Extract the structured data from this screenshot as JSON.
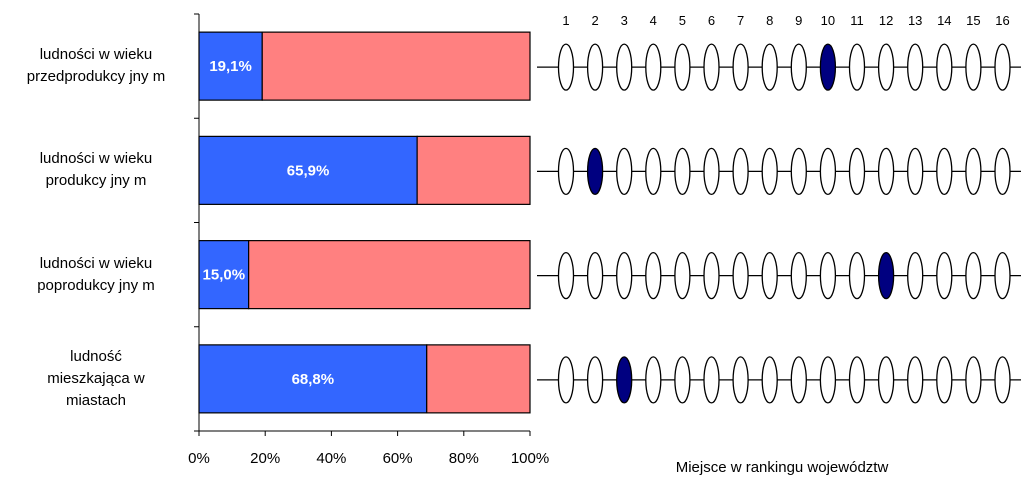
{
  "chart_data": [
    {
      "type": "bar",
      "stacked": true,
      "orientation": "horizontal",
      "categories": [
        [
          "ludności w wieku",
          "przedprodukcy jny m"
        ],
        [
          "ludności w wieku",
          "produkcy jny m"
        ],
        [
          "ludności w wieku",
          "poprodukcy jny m"
        ],
        [
          "ludność",
          "mieszkająca w",
          "miastach"
        ]
      ],
      "series": [
        {
          "values": [
            19.1,
            65.9,
            15.0,
            68.8
          ],
          "color": "#3366ff"
        },
        {
          "values": [
            80.9,
            34.1,
            85.0,
            31.2
          ],
          "color": "#ff8080"
        }
      ],
      "data_labels": [
        "19,1%",
        "65,9%",
        "15,0%",
        "68,8%"
      ],
      "xlim": [
        0,
        100
      ],
      "x_ticks": [
        "0%",
        "20%",
        "40%",
        "60%",
        "80%",
        "100%"
      ],
      "grid": false,
      "legend": "none"
    },
    {
      "type": "rank-indicator",
      "xlabel": "Miejsce w rankingu województw",
      "positions": [
        "1",
        "2",
        "3",
        "4",
        "5",
        "6",
        "7",
        "8",
        "9",
        "10",
        "11",
        "12",
        "13",
        "14",
        "15",
        "16"
      ],
      "ranks": [
        10,
        2,
        12,
        3
      ],
      "highlight_color": "#000080"
    }
  ]
}
